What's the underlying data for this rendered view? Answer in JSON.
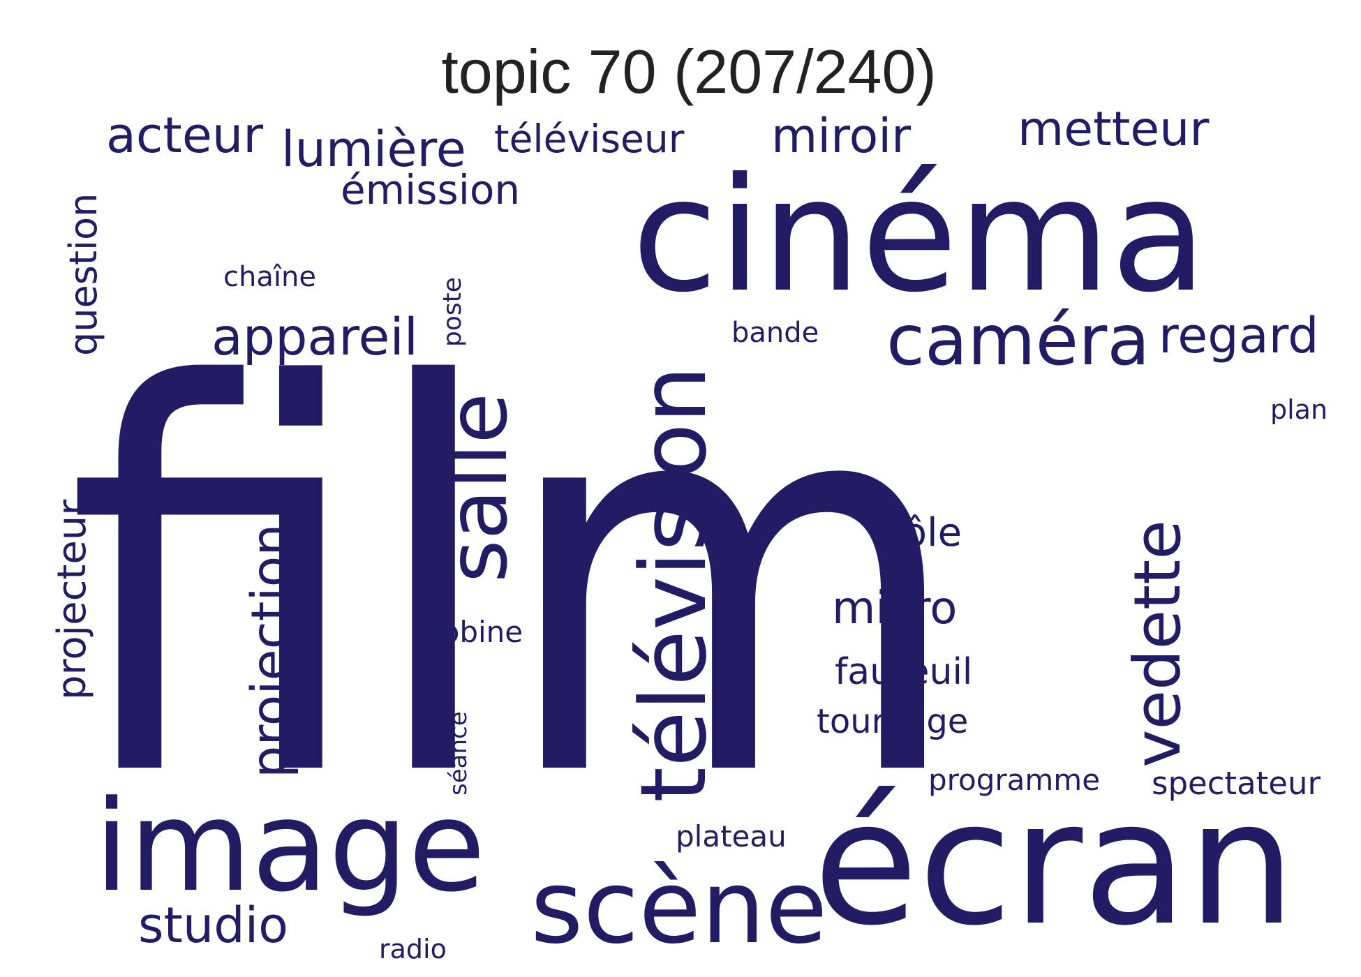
{
  "title": "topic 70 (207/240)",
  "style": {
    "word_color": "#211c63",
    "title_color": "#222222",
    "background": "#ffffff"
  },
  "words": [
    {
      "key": "film",
      "text": "film"
    },
    {
      "key": "cinema",
      "text": "cinéma"
    },
    {
      "key": "ecran",
      "text": "écran"
    },
    {
      "key": "image",
      "text": "image"
    },
    {
      "key": "television",
      "text": "télévision"
    },
    {
      "key": "salle",
      "text": "salle"
    },
    {
      "key": "scene",
      "text": "scène"
    },
    {
      "key": "camera",
      "text": "caméra"
    },
    {
      "key": "vedette",
      "text": "vedette"
    },
    {
      "key": "projection",
      "text": "projection"
    },
    {
      "key": "appareil",
      "text": "appareil"
    },
    {
      "key": "lumiere",
      "text": "lumière"
    },
    {
      "key": "acteur",
      "text": "acteur"
    },
    {
      "key": "miroir",
      "text": "miroir"
    },
    {
      "key": "metteur",
      "text": "metteur"
    },
    {
      "key": "regard",
      "text": "regard"
    },
    {
      "key": "studio",
      "text": "studio"
    },
    {
      "key": "question",
      "text": "question"
    },
    {
      "key": "projecteur",
      "text": "projecteur"
    },
    {
      "key": "micro",
      "text": "micro"
    },
    {
      "key": "emission",
      "text": "émission"
    },
    {
      "key": "televiseur",
      "text": "téléviseur"
    },
    {
      "key": "role",
      "text": "rôle"
    },
    {
      "key": "fauteuil",
      "text": "fauteuil"
    },
    {
      "key": "tournage",
      "text": "tournage"
    },
    {
      "key": "spectateur",
      "text": "spectateur"
    },
    {
      "key": "programme",
      "text": "programme"
    },
    {
      "key": "bobine",
      "text": "bobine"
    },
    {
      "key": "plateau",
      "text": "plateau"
    },
    {
      "key": "bande",
      "text": "bande"
    },
    {
      "key": "chaine",
      "text": "chaîne"
    },
    {
      "key": "plan",
      "text": "plan"
    },
    {
      "key": "poste",
      "text": "poste"
    },
    {
      "key": "seance",
      "text": "séance"
    },
    {
      "key": "radio",
      "text": "radio"
    }
  ]
}
